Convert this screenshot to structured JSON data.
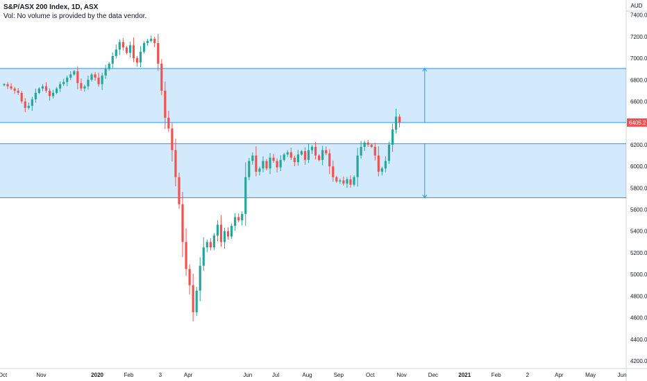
{
  "header": {
    "symbol": "S&P/ASX 200 Index, 1D, ASX",
    "volume_note": "Vol: No volume is provided by the data vendor."
  },
  "chart_data": {
    "type": "candlestick",
    "currency_label": "AUD",
    "ylim": [
      4100,
      7450
    ],
    "y_ticks": [
      4200,
      4400,
      4600,
      4800,
      5000,
      5200,
      5400,
      5600,
      5800,
      6000,
      6200,
      6400,
      6600,
      6800,
      7000,
      7200,
      7400
    ],
    "x_ticks": [
      {
        "label": "Oct",
        "bold": false,
        "slot": 0
      },
      {
        "label": "Nov",
        "bold": false,
        "slot": 11
      },
      {
        "label": "2020",
        "bold": true,
        "slot": 27
      },
      {
        "label": "Feb",
        "bold": false,
        "slot": 36
      },
      {
        "label": "3",
        "bold": false,
        "slot": 45
      },
      {
        "label": "Apr",
        "bold": false,
        "slot": 53
      },
      {
        "label": "Jun",
        "bold": false,
        "slot": 70
      },
      {
        "label": "Jul",
        "bold": false,
        "slot": 78
      },
      {
        "label": "Aug",
        "bold": false,
        "slot": 87
      },
      {
        "label": "Sep",
        "bold": false,
        "slot": 96
      },
      {
        "label": "Oct",
        "bold": false,
        "slot": 105
      },
      {
        "label": "Nov",
        "bold": false,
        "slot": 114
      },
      {
        "label": "Dec",
        "bold": false,
        "slot": 123
      },
      {
        "label": "2021",
        "bold": true,
        "slot": 132
      },
      {
        "label": "Feb",
        "bold": false,
        "slot": 141
      },
      {
        "label": "2",
        "bold": false,
        "slot": 150
      },
      {
        "label": "Apr",
        "bold": false,
        "slot": 159
      },
      {
        "label": "May",
        "bold": false,
        "slot": 168
      },
      {
        "label": "Jun",
        "bold": false,
        "slot": 177
      }
    ],
    "last_price": 6405.2,
    "last_price_label": "6405.2",
    "zones": [
      {
        "from": 6405,
        "to": 6905
      },
      {
        "from": 5710,
        "to": 6210
      }
    ],
    "measure_arrows": [
      {
        "slot": 120,
        "from": 6405,
        "to": 6905
      },
      {
        "slot": 120,
        "from": 6210,
        "to": 5710
      }
    ],
    "closes": [
      6760,
      6740,
      6720,
      6700,
      6680,
      6600,
      6540,
      6560,
      6620,
      6680,
      6720,
      6740,
      6700,
      6650,
      6680,
      6720,
      6760,
      6780,
      6820,
      6850,
      6880,
      6770,
      6720,
      6740,
      6800,
      6850,
      6820,
      6760,
      6840,
      6900,
      6950,
      7020,
      7080,
      7150,
      7100,
      7050,
      7120,
      7000,
      6960,
      7060,
      7140,
      7160,
      7180,
      7140,
      6950,
      6700,
      6450,
      6350,
      6150,
      5900,
      5650,
      5300,
      5050,
      4900,
      4650,
      4850,
      5080,
      5250,
      5300,
      5250,
      5360,
      5460,
      5300,
      5400,
      5350,
      5450,
      5530,
      5500,
      5560,
      5900,
      6050,
      6100,
      5950,
      5980,
      6050,
      5980,
      6080,
      6050,
      5990,
      6060,
      6110,
      6130,
      6080,
      6040,
      6110,
      6140,
      6060,
      6150,
      6180,
      6100,
      6060,
      6150,
      6120,
      6000,
      5900,
      5860,
      5870,
      5840,
      5880,
      5830,
      5900,
      6100,
      6180,
      6220,
      6200,
      6180,
      6100,
      5950,
      5980,
      6050,
      6200,
      6340,
      6460,
      6405
    ]
  }
}
